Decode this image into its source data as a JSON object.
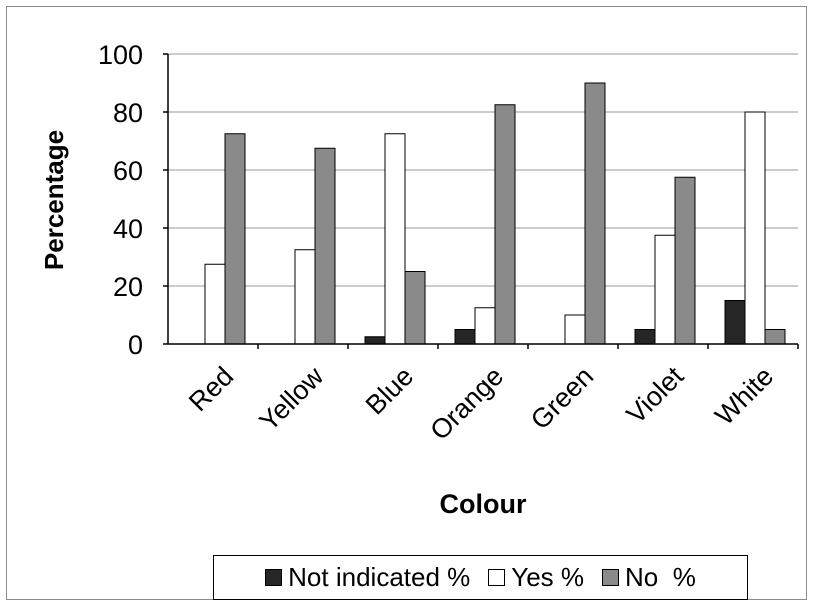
{
  "chart_data": {
    "type": "bar",
    "title": "",
    "xlabel": "Colour",
    "ylabel": "Percentage",
    "ylim": [
      0,
      100
    ],
    "yticks": [
      0,
      20,
      40,
      60,
      80,
      100
    ],
    "grid": true,
    "legend_position": "bottom",
    "categories": [
      "Red",
      "Yellow",
      "Blue",
      "Orange",
      "Green",
      "Violet",
      "White"
    ],
    "series": [
      {
        "name": "Not indicated %",
        "color": "#262626",
        "values": [
          0,
          0,
          2.5,
          5,
          0,
          5,
          15
        ]
      },
      {
        "name": "Yes %",
        "color": "#ffffff",
        "values": [
          27.5,
          32.5,
          72.5,
          12.5,
          10,
          37.5,
          80
        ]
      },
      {
        "name": "No  %",
        "color": "#8a8a8a",
        "values": [
          72.5,
          67.5,
          25,
          82.5,
          90,
          57.5,
          5
        ]
      }
    ]
  }
}
